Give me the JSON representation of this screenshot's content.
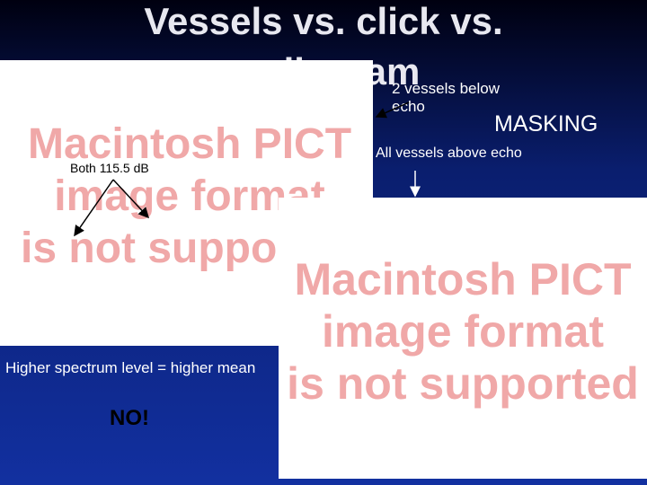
{
  "slide": {
    "title": "Vessels vs. click vs. audiogram",
    "annotations": {
      "two_vessels": "2 vessels below echo",
      "masking": "MASKING",
      "all_vessels": "All vessels above echo",
      "both": "Both 115.5 dB",
      "higher": "Higher spectrum level = higher mean",
      "no": "NO!"
    },
    "placeholders": [
      {
        "lines": [
          "Macintosh PICT",
          "image format",
          "is not supported"
        ]
      },
      {
        "lines": [
          "Macintosh PICT",
          "image format",
          "is not supported"
        ]
      }
    ]
  }
}
